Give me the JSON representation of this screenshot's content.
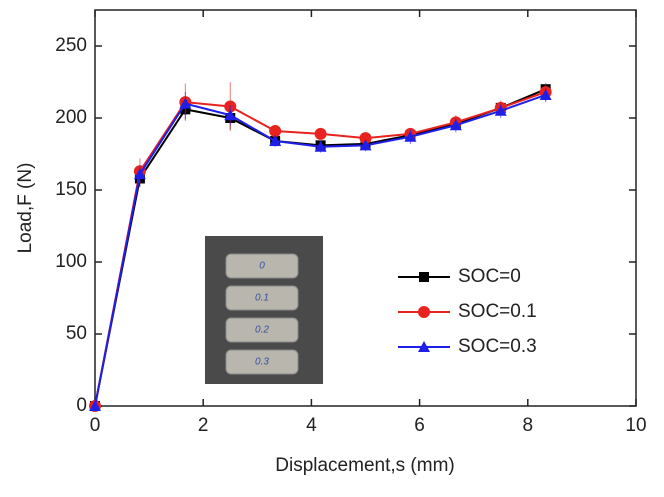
{
  "chart_data": {
    "type": "line",
    "x_label": "Displacement,s (mm)",
    "y_label": "Load,F (N)",
    "x": [
      0,
      0.83,
      1.67,
      2.5,
      3.33,
      4.17,
      5.0,
      5.83,
      6.67,
      7.5,
      8.33
    ],
    "series": [
      {
        "name": "SOC=0",
        "color": "#000000",
        "marker": "square",
        "values": [
          0,
          158,
          206,
          200,
          184,
          181,
          182,
          188,
          196,
          207,
          220
        ],
        "errors": [
          0,
          6,
          7,
          8,
          3,
          3,
          3,
          4,
          4,
          4,
          4
        ]
      },
      {
        "name": "SOC=0.1",
        "color": "#e8231f",
        "marker": "circle",
        "values": [
          0,
          163,
          211,
          208,
          191,
          189,
          186,
          189,
          197,
          207,
          218
        ],
        "errors": [
          0,
          9,
          13,
          17,
          3,
          3,
          4,
          4,
          5,
          5,
          6
        ]
      },
      {
        "name": "SOC=0.3",
        "color": "#1f1fe8",
        "marker": "triangle",
        "values": [
          0,
          161,
          210,
          202,
          184,
          180,
          181,
          187,
          195,
          205,
          216
        ],
        "errors": [
          0,
          6,
          8,
          7,
          4,
          4,
          4,
          5,
          5,
          5,
          5
        ]
      }
    ],
    "xlim": [
      0,
      10
    ],
    "xticks": [
      0,
      2,
      4,
      6,
      8,
      10
    ],
    "ylim": [
      0,
      275
    ],
    "yticks": [
      0,
      50,
      100,
      150,
      200,
      250
    ],
    "legend": "right",
    "inset_labels": [
      "0",
      "0.1",
      "0.2",
      "0.3"
    ]
  }
}
